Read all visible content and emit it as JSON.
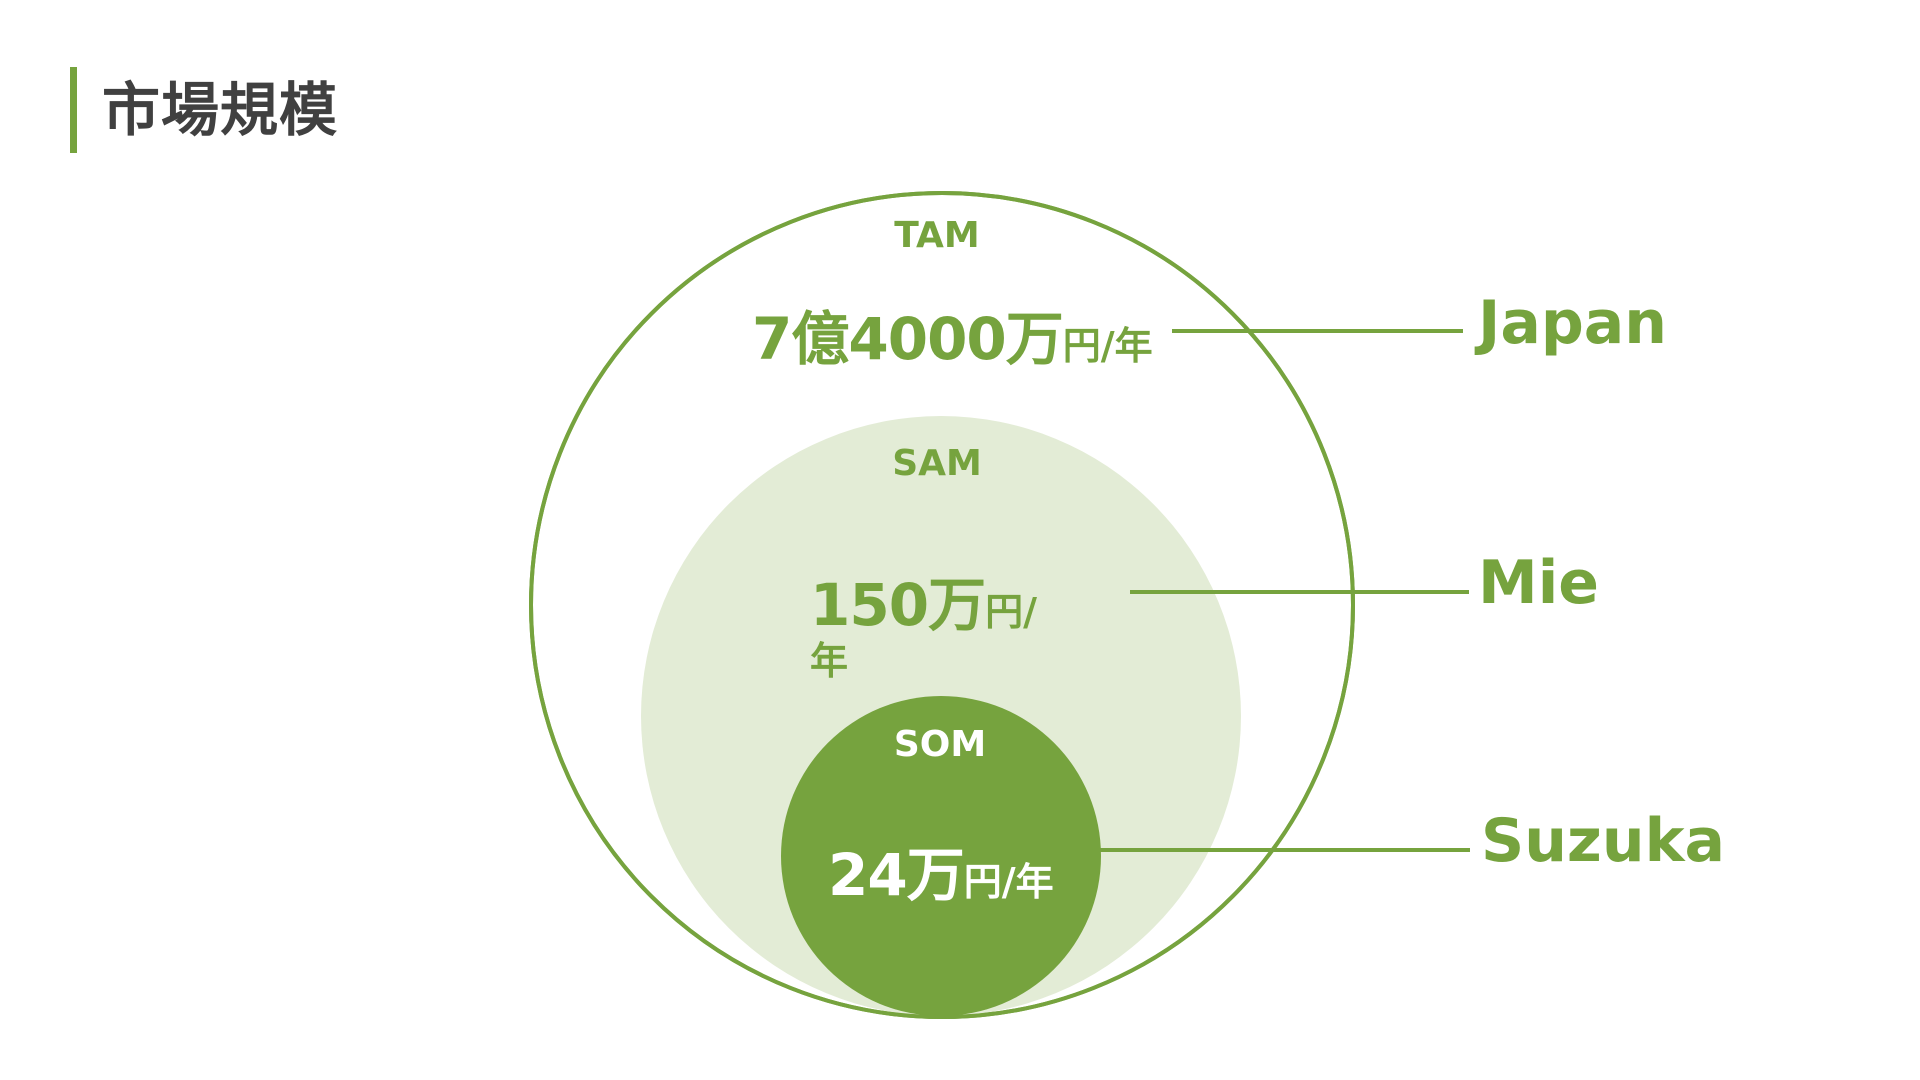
{
  "page": {
    "title": "市場規模"
  },
  "colors": {
    "accent": "#76a33e",
    "sam_fill": "#e3ecd6",
    "som_fill": "#76a33e",
    "title_text": "#404040"
  },
  "diagram": {
    "tam": {
      "name": "TAM",
      "value_main": "7億4000万",
      "value_unit": "円/年",
      "region": "Japan"
    },
    "sam": {
      "name": "SAM",
      "value_main": "150万",
      "value_unit_line1": "円/",
      "value_unit_line2": "年",
      "region": "Mie"
    },
    "som": {
      "name": "SOM",
      "value_main": "24万",
      "value_unit": "円/年",
      "region": "Suzuka"
    }
  }
}
